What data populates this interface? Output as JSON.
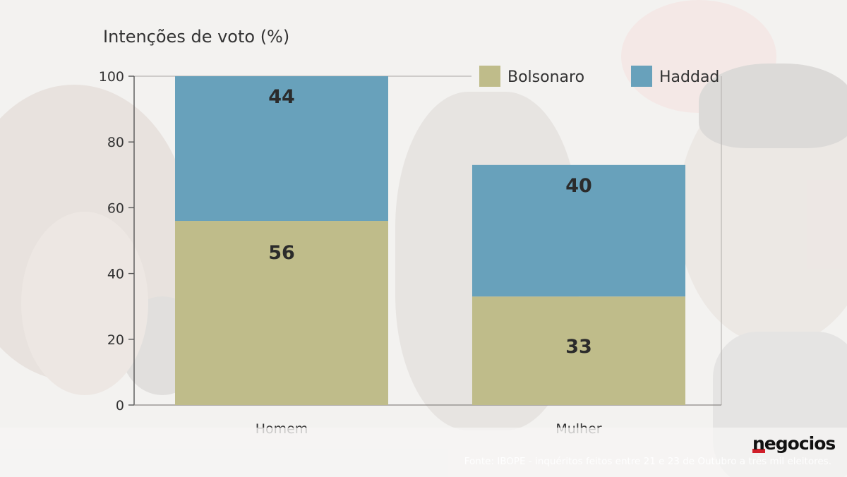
{
  "chart_data": {
    "type": "bar",
    "stacked": true,
    "title": "Intenções de voto (%)",
    "categories": [
      "Homem",
      "Mulher"
    ],
    "series": [
      {
        "name": "Bolsonaro",
        "values": [
          56,
          33
        ],
        "color": "#bfbc8a"
      },
      {
        "name": "Haddad",
        "values": [
          44,
          40
        ],
        "color": "#68a1bb"
      }
    ],
    "data_labels": [
      [
        "56",
        "33"
      ],
      [
        "44",
        "40"
      ]
    ],
    "ylim": [
      0,
      100
    ],
    "yticks": [
      0,
      20,
      40,
      60,
      80,
      100
    ],
    "grid": false,
    "legend_position": "top-right"
  },
  "source_text": "Fonte: IBOPE - inquéritos feitos entre 21 e 23 de Outubro a três mil eleitores.",
  "logo_text": "negocios"
}
